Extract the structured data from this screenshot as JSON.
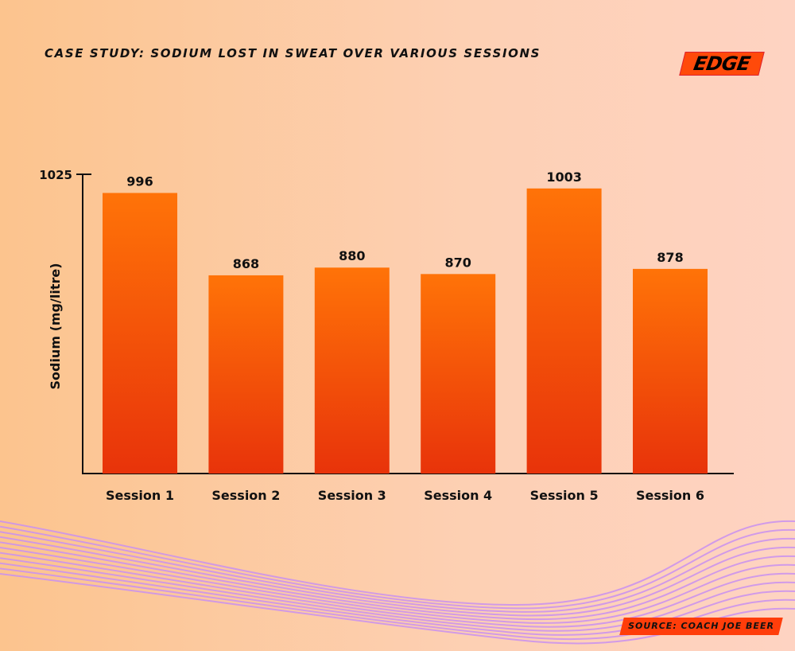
{
  "logo": "EDGE",
  "source": "SOURCE: COACH JOE BEER",
  "colors": {
    "bar_top": "#ff7308",
    "bar_bottom": "#e8330a",
    "wave": "#c990f0"
  },
  "chart_data": {
    "type": "bar",
    "title": "CASE STUDY: SODIUM LOST IN SWEAT OVER VARIOUS SESSIONS",
    "xlabel": "",
    "ylabel": "Sodium (mg/litre)",
    "categories": [
      "Session 1",
      "Session 2",
      "Session 3",
      "Session 4",
      "Session 5",
      "Session 6"
    ],
    "values": [
      996,
      868,
      880,
      870,
      1003,
      878
    ],
    "value_labels": [
      "996",
      "868",
      "880",
      "870",
      "1003",
      "878"
    ],
    "yticks": [
      "1025"
    ],
    "ylim": [
      560,
      1025
    ],
    "grid": false
  }
}
